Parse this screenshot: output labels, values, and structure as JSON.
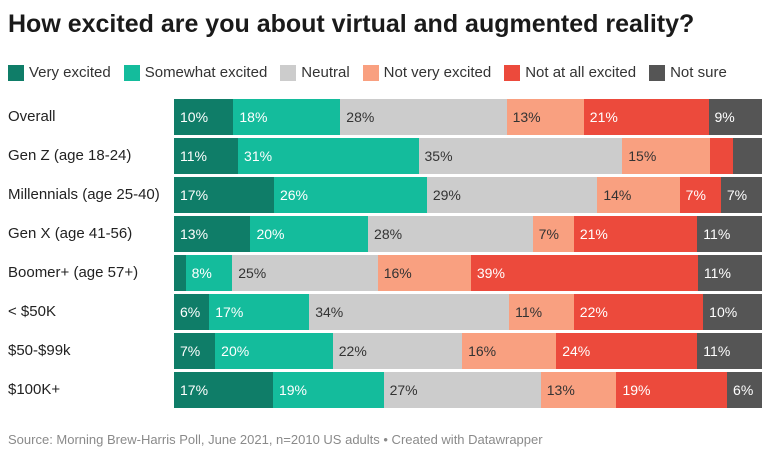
{
  "title": "How excited are you about virtual and augmented reality?",
  "source": "Source: Morning Brew-Harris Poll, June 2021, n=2010 US adults • Created with Datawrapper",
  "chart_data": {
    "type": "bar",
    "orientation": "horizontal-stacked-100",
    "categories": [
      "Overall",
      "Gen Z (age 18-24)",
      "Millennials (age 25-40)",
      "Gen X (age 41-56)",
      "Boomer+ (age 57+)",
      "< $50K",
      "$50-$99k",
      "$100K+"
    ],
    "series": [
      {
        "name": "Very excited",
        "color": "#0f7d68",
        "text_color": "#ffffff",
        "values": [
          10,
          11,
          17,
          13,
          2,
          6,
          7,
          17
        ],
        "labels": [
          "10%",
          "11%",
          "17%",
          "13%",
          "",
          "6%",
          "7%",
          "17%"
        ]
      },
      {
        "name": "Somewhat excited",
        "color": "#14bc9c",
        "text_color": "#ffffff",
        "values": [
          18,
          31,
          26,
          20,
          8,
          17,
          20,
          19
        ],
        "labels": [
          "18%",
          "31%",
          "26%",
          "20%",
          "8%",
          "17%",
          "20%",
          "19%"
        ]
      },
      {
        "name": "Neutral",
        "color": "#cccccc",
        "text_color": "#333333",
        "values": [
          28,
          35,
          29,
          28,
          25,
          34,
          22,
          27
        ],
        "labels": [
          "28%",
          "35%",
          "29%",
          "28%",
          "25%",
          "34%",
          "22%",
          "27%"
        ]
      },
      {
        "name": "Not very excited",
        "color": "#f9a080",
        "text_color": "#333333",
        "values": [
          13,
          15,
          14,
          7,
          16,
          11,
          16,
          13
        ],
        "labels": [
          "13%",
          "15%",
          "14%",
          "7%",
          "16%",
          "11%",
          "16%",
          "13%"
        ]
      },
      {
        "name": "Not at all excited",
        "color": "#ec4a3c",
        "text_color": "#ffffff",
        "values": [
          21,
          4,
          7,
          21,
          39,
          22,
          24,
          19
        ],
        "labels": [
          "21%",
          "",
          "7%",
          "21%",
          "39%",
          "22%",
          "24%",
          "19%"
        ]
      },
      {
        "name": "Not sure",
        "color": "#555555",
        "text_color": "#ffffff",
        "values": [
          9,
          5,
          7,
          11,
          11,
          10,
          11,
          6
        ],
        "labels": [
          "9%",
          "",
          "7%",
          "11%",
          "11%",
          "10%",
          "11%",
          "6%"
        ]
      }
    ],
    "xlim": [
      0,
      100
    ],
    "legend_position": "top"
  }
}
